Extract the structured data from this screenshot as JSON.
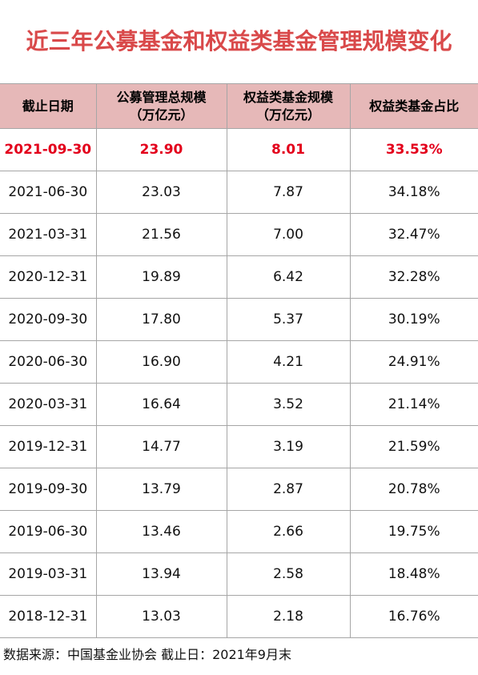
{
  "title": "近三年公募基金和权益类基金管理规模变化",
  "table": {
    "headers": [
      "截止日期",
      "公募管理总规模\n（万亿元）",
      "权益类基金规模\n（万亿元）",
      "权益类基金占比"
    ],
    "rows": [
      [
        "2021-09-30",
        "23.90",
        "8.01",
        "33.53%"
      ],
      [
        "2021-06-30",
        "23.03",
        "7.87",
        "34.18%"
      ],
      [
        "2021-03-31",
        "21.56",
        "7.00",
        "32.47%"
      ],
      [
        "2020-12-31",
        "19.89",
        "6.42",
        "32.28%"
      ],
      [
        "2020-09-30",
        "17.80",
        "5.37",
        "30.19%"
      ],
      [
        "2020-06-30",
        "16.90",
        "4.21",
        "24.91%"
      ],
      [
        "2020-03-31",
        "16.64",
        "3.52",
        "21.14%"
      ],
      [
        "2019-12-31",
        "14.77",
        "3.19",
        "21.59%"
      ],
      [
        "2019-09-30",
        "13.79",
        "2.87",
        "20.78%"
      ],
      [
        "2019-06-30",
        "13.46",
        "2.66",
        "19.75%"
      ],
      [
        "2019-03-31",
        "13.94",
        "2.58",
        "18.48%"
      ],
      [
        "2018-12-31",
        "13.03",
        "2.18",
        "16.76%"
      ]
    ],
    "highlight_row": 0
  },
  "footer": "数据来源：中国基金业协会  截止日：2021年9月末",
  "colors": {
    "title": "#d9494a",
    "header_bg": "#e6b8b8",
    "highlight_text": "#e3001b",
    "grid_line": "#a6a6a6"
  }
}
